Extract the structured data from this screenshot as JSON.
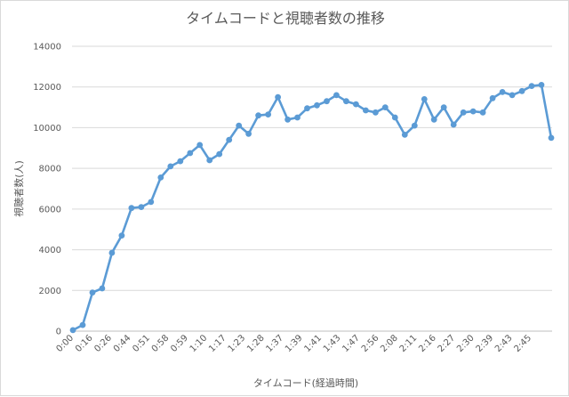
{
  "chart_data": {
    "type": "line",
    "title": "タイムコードと視聴者数の推移",
    "xlabel": "タイムコード(経過時間)",
    "ylabel": "視聴者数(人)",
    "ylim": [
      0,
      14000
    ],
    "yticks": [
      0,
      2000,
      4000,
      6000,
      8000,
      10000,
      12000,
      14000
    ],
    "grid": true,
    "legend": "none",
    "color": "#5b9bd5",
    "x_tick_labels": [
      "0:00",
      "0:16",
      "0:26",
      "0:44",
      "0:51",
      "0:58",
      "0:59",
      "1:10",
      "1:17",
      "1:23",
      "1:28",
      "1:37",
      "1:39",
      "1:41",
      "1:43",
      "1:47",
      "2:56",
      "2:08",
      "2:11",
      "2:16",
      "2:27",
      "2:30",
      "2:39",
      "2:43",
      "2:45"
    ],
    "series": [
      {
        "values": [
          50,
          300,
          1900,
          2100,
          3850,
          4700,
          6050,
          6100,
          6350,
          7550,
          8100,
          8350,
          8750,
          9150,
          8400,
          8700,
          9400,
          10100,
          9700,
          10600,
          10650,
          11500,
          10400,
          10500,
          10950,
          11100,
          11300,
          11600,
          11300,
          11150,
          10850,
          10750,
          11000,
          10500,
          9650,
          10100,
          11400,
          10400,
          11000,
          10150,
          10750,
          10800,
          10750,
          11450,
          11750,
          11600,
          11800,
          12050,
          12100,
          9500
        ]
      }
    ]
  }
}
